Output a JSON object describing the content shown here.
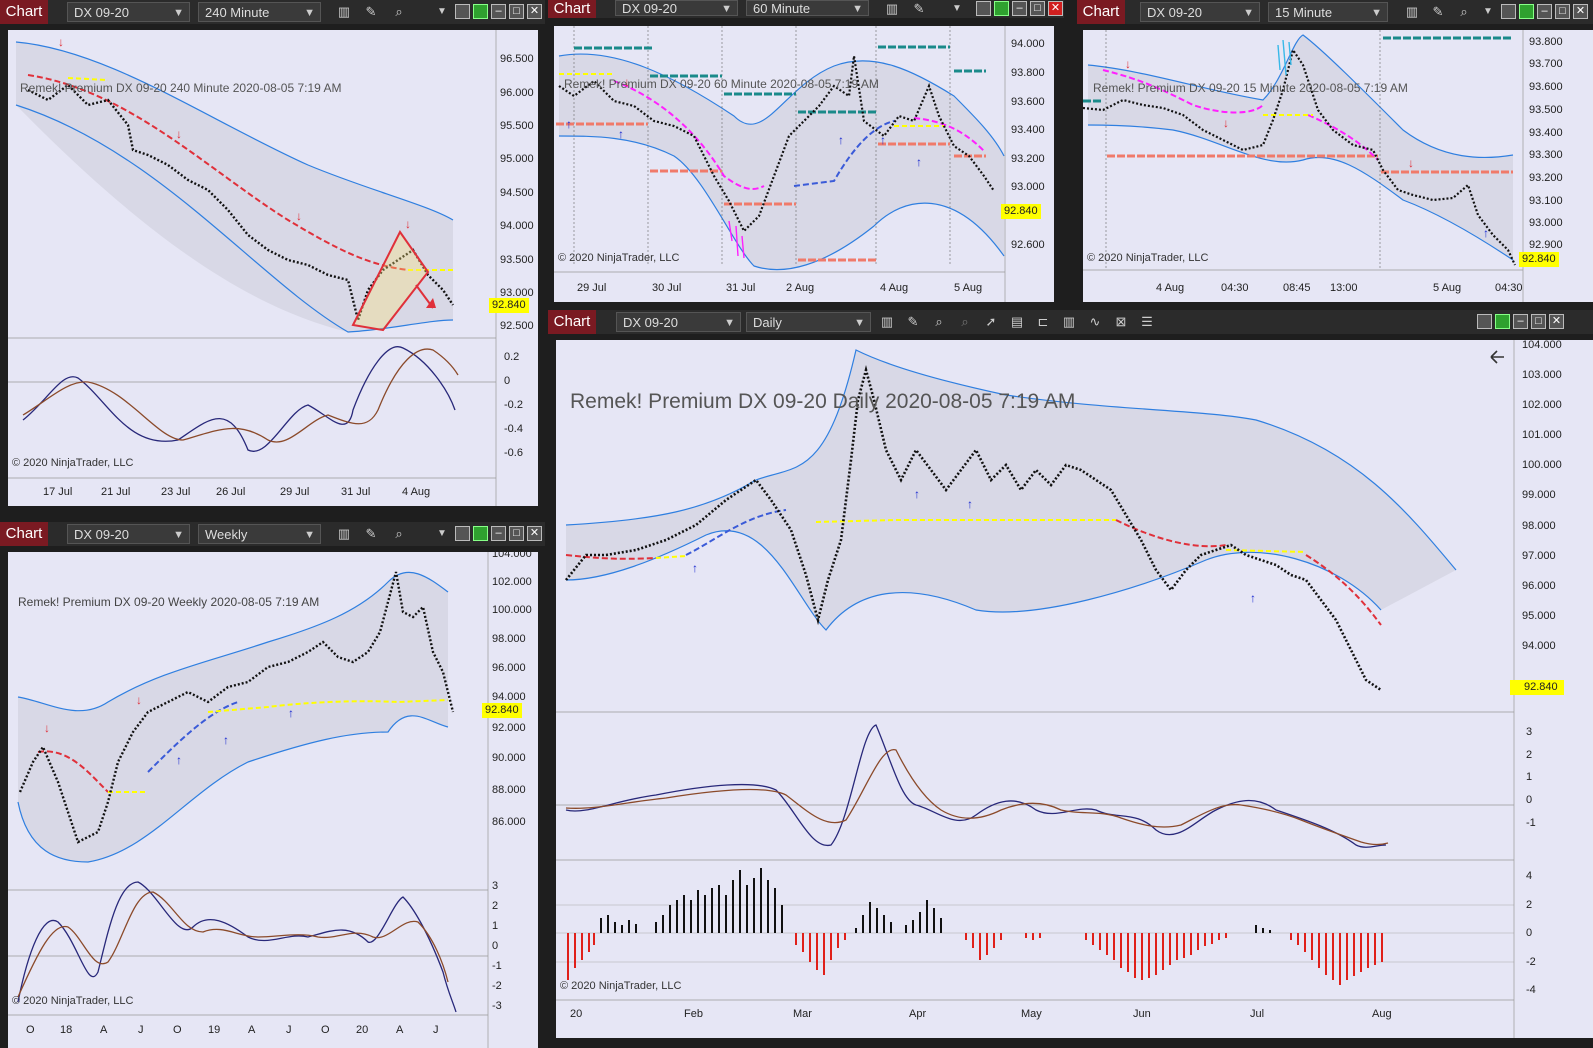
{
  "common": {
    "chart_label": "Chart",
    "instrument": "DX 09-20",
    "copyright": "© 2020 NinjaTrader, LLC",
    "last_price": "92.840"
  },
  "windows": {
    "w240": {
      "timeframe": "240 Minute",
      "title": "Remek!  Premium  DX 09-20  240 Minute  2020-08-05 7:19 AM",
      "price_ticks": [
        "96.500",
        "96.000",
        "95.500",
        "95.000",
        "94.500",
        "94.000",
        "93.500",
        "93.000",
        "92.500"
      ],
      "osc_ticks": [
        "0.2",
        "0",
        "-0.2",
        "-0.4",
        "-0.6"
      ],
      "time_ticks": [
        "17 Jul",
        "21 Jul",
        "23 Jul",
        "26 Jul",
        "29 Jul",
        "31 Jul",
        "4 Aug"
      ]
    },
    "w60": {
      "timeframe": "60 Minute",
      "title": "Remek!  Premium  DX 09-20  60 Minute  2020-08-05 7:19 AM",
      "price_ticks": [
        "94.000",
        "93.800",
        "93.600",
        "93.400",
        "93.200",
        "93.000",
        "92.600"
      ],
      "time_ticks": [
        "29 Jul",
        "30 Jul",
        "31 Jul",
        "2 Aug",
        "4 Aug",
        "5 Aug"
      ]
    },
    "w15": {
      "timeframe": "15 Minute",
      "title": "Remek!  Premium  DX 09-20  15 Minute  2020-08-05 7:19 AM",
      "price_ticks": [
        "93.800",
        "93.700",
        "93.600",
        "93.500",
        "93.400",
        "93.300",
        "93.200",
        "93.100",
        "93.000",
        "92.900"
      ],
      "time_ticks": [
        "4 Aug",
        "04:30",
        "08:45",
        "13:00",
        "5 Aug",
        "04:30"
      ]
    },
    "wweek": {
      "timeframe": "Weekly",
      "title": "Remek!  Premium  DX 09-20  Weekly  2020-08-05 7:19 AM",
      "price_ticks": [
        "104.000",
        "102.000",
        "100.000",
        "98.000",
        "96.000",
        "94.000",
        "92.000",
        "90.000",
        "88.000",
        "86.000"
      ],
      "osc_ticks": [
        "3",
        "2",
        "1",
        "0",
        "-1",
        "-2",
        "-3"
      ],
      "time_ticks": [
        "O",
        "18",
        "A",
        "J",
        "O",
        "19",
        "A",
        "J",
        "O",
        "20",
        "A",
        "J"
      ]
    },
    "wdaily": {
      "timeframe": "Daily",
      "title": "Remek!  Premium  DX 09-20  Daily  2020-08-05 7:19 AM",
      "price_ticks": [
        "104.000",
        "103.000",
        "102.000",
        "101.000",
        "100.000",
        "99.000",
        "98.000",
        "97.000",
        "96.000",
        "95.000",
        "94.000"
      ],
      "osc_ticks": [
        "3",
        "2",
        "1",
        "0",
        "-1"
      ],
      "hist_ticks": [
        "4",
        "2",
        "0",
        "-2",
        "-4"
      ],
      "time_ticks": [
        "20",
        "Feb",
        "Mar",
        "Apr",
        "May",
        "Jun",
        "Jul",
        "Aug"
      ]
    }
  },
  "colors": {
    "title_bar": "#2b2b2b",
    "chart_tab": "#7a1a22",
    "plot_bg": "#e6e6f5",
    "band": "#2f7fe0",
    "price_tag": "#ffff00",
    "bear_trend": "#e0303a",
    "bull_trend": "#3b5bd8"
  }
}
